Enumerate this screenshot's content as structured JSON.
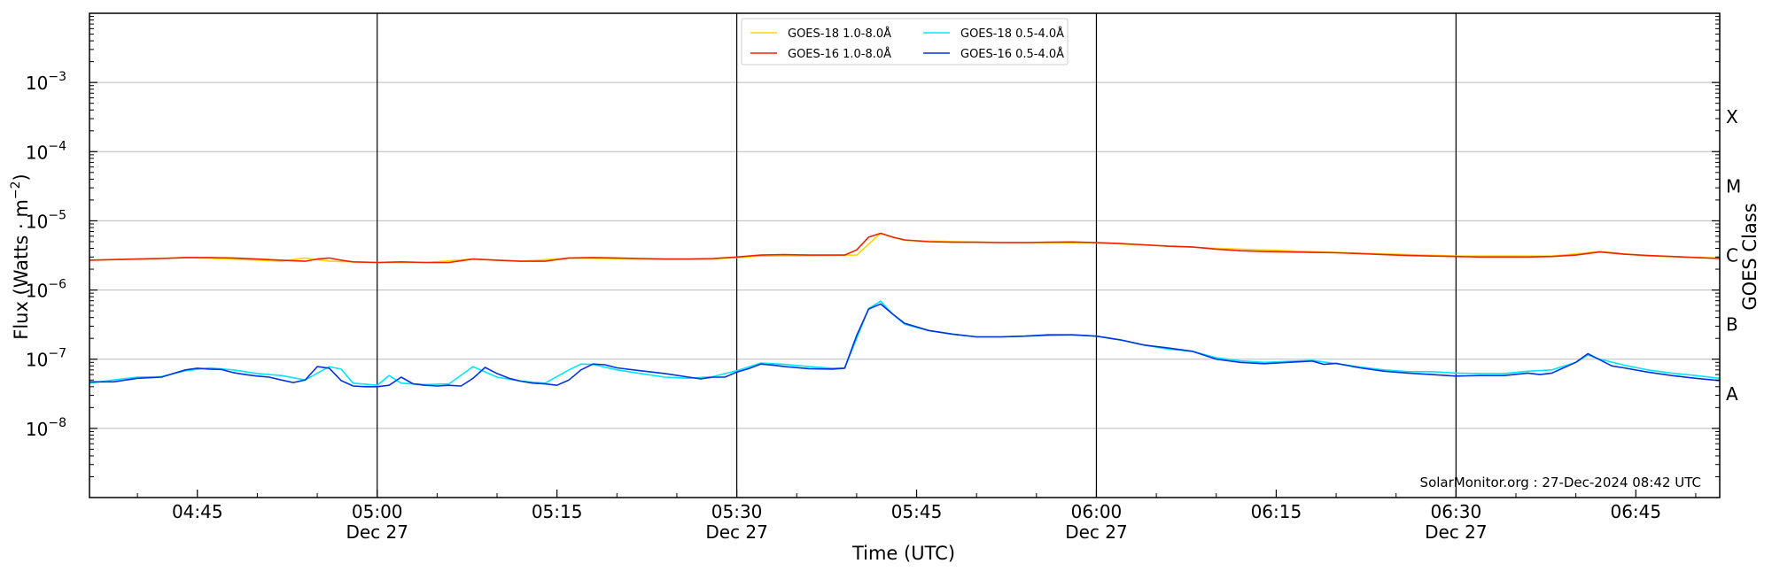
{
  "chart_data": {
    "type": "line",
    "title": "",
    "xlabel": "Time (UTC)",
    "ylabel": "Flux (Watts · m",
    "ylabel_superscript": "−2",
    "ylabel_close": ")",
    "y2label": "GOES Class",
    "yscale": "log",
    "ylim": [
      1e-09,
      0.01
    ],
    "xlim_minutes": [
      -24,
      112
    ],
    "grid": "horizontal",
    "legend_position": "top-center",
    "y_ticks": [
      {
        "value": 1e-08,
        "mantissa": "10",
        "exponent": "−8"
      },
      {
        "value": 1e-07,
        "mantissa": "10",
        "exponent": "−7"
      },
      {
        "value": 1e-06,
        "mantissa": "10",
        "exponent": "−6"
      },
      {
        "value": 1e-05,
        "mantissa": "10",
        "exponent": "−5"
      },
      {
        "value": 0.0001,
        "mantissa": "10",
        "exponent": "−4"
      },
      {
        "value": 0.001,
        "mantissa": "10",
        "exponent": "−3"
      }
    ],
    "x_ticks": [
      {
        "t": -15,
        "label": "04:45",
        "sublabel": ""
      },
      {
        "t": 0,
        "label": "05:00",
        "sublabel": "Dec 27"
      },
      {
        "t": 15,
        "label": "05:15",
        "sublabel": ""
      },
      {
        "t": 30,
        "label": "05:30",
        "sublabel": "Dec 27"
      },
      {
        "t": 45,
        "label": "05:45",
        "sublabel": ""
      },
      {
        "t": 60,
        "label": "06:00",
        "sublabel": "Dec 27"
      },
      {
        "t": 75,
        "label": "06:15",
        "sublabel": ""
      },
      {
        "t": 90,
        "label": "06:30",
        "sublabel": "Dec 27"
      },
      {
        "t": 105,
        "label": "06:45",
        "sublabel": ""
      }
    ],
    "vertical_lines": [
      0,
      30,
      60,
      90
    ],
    "class_labels": [
      {
        "label": "A",
        "value": 3.16e-08
      },
      {
        "label": "B",
        "value": 3.16e-07
      },
      {
        "label": "C",
        "value": 3.16e-06
      },
      {
        "label": "M",
        "value": 3.16e-05
      },
      {
        "label": "X",
        "value": 0.000316
      }
    ],
    "series": [
      {
        "name": "GOES-18 1.0-8.0Å",
        "color": "#ffd700",
        "points": [
          [
            -24,
            2.7e-06
          ],
          [
            -20,
            2.8e-06
          ],
          [
            -16,
            2.95e-06
          ],
          [
            -12,
            2.8e-06
          ],
          [
            -8,
            2.6e-06
          ],
          [
            -6,
            2.9e-06
          ],
          [
            -4,
            2.6e-06
          ],
          [
            0,
            2.5e-06
          ],
          [
            4,
            2.5e-06
          ],
          [
            8,
            2.8e-06
          ],
          [
            12,
            2.6e-06
          ],
          [
            16,
            2.9e-06
          ],
          [
            22,
            2.8e-06
          ],
          [
            28,
            2.8e-06
          ],
          [
            32,
            3.1e-06
          ],
          [
            40,
            3.2e-06
          ],
          [
            42,
            6.6e-06
          ],
          [
            44,
            5.2e-06
          ],
          [
            50,
            4.9e-06
          ],
          [
            60,
            4.8e-06
          ],
          [
            70,
            4e-06
          ],
          [
            80,
            3.5e-06
          ],
          [
            90,
            3.1e-06
          ],
          [
            98,
            3.1e-06
          ],
          [
            102,
            3.6e-06
          ],
          [
            106,
            3.1e-06
          ],
          [
            112,
            2.9e-06
          ]
        ]
      },
      {
        "name": "GOES-16 1.0-8.0Å",
        "color": "#ee2200",
        "points": [
          [
            -24,
            2.7e-06
          ],
          [
            -22,
            2.75e-06
          ],
          [
            -20,
            2.8e-06
          ],
          [
            -18,
            2.85e-06
          ],
          [
            -16,
            2.95e-06
          ],
          [
            -14,
            2.95e-06
          ],
          [
            -12,
            2.9e-06
          ],
          [
            -10,
            2.8e-06
          ],
          [
            -8,
            2.7e-06
          ],
          [
            -6,
            2.6e-06
          ],
          [
            -5,
            2.8e-06
          ],
          [
            -4,
            2.9e-06
          ],
          [
            -3,
            2.7e-06
          ],
          [
            -2,
            2.55e-06
          ],
          [
            0,
            2.5e-06
          ],
          [
            2,
            2.55e-06
          ],
          [
            4,
            2.5e-06
          ],
          [
            6,
            2.5e-06
          ],
          [
            8,
            2.8e-06
          ],
          [
            10,
            2.7e-06
          ],
          [
            12,
            2.6e-06
          ],
          [
            14,
            2.6e-06
          ],
          [
            16,
            2.9e-06
          ],
          [
            18,
            2.95e-06
          ],
          [
            20,
            2.9e-06
          ],
          [
            22,
            2.85e-06
          ],
          [
            24,
            2.8e-06
          ],
          [
            26,
            2.8e-06
          ],
          [
            28,
            2.85e-06
          ],
          [
            30,
            3e-06
          ],
          [
            32,
            3.2e-06
          ],
          [
            34,
            3.25e-06
          ],
          [
            36,
            3.2e-06
          ],
          [
            38,
            3.2e-06
          ],
          [
            39,
            3.2e-06
          ],
          [
            40,
            3.8e-06
          ],
          [
            41,
            5.8e-06
          ],
          [
            42,
            6.6e-06
          ],
          [
            43,
            5.8e-06
          ],
          [
            44,
            5.3e-06
          ],
          [
            46,
            5e-06
          ],
          [
            48,
            4.9e-06
          ],
          [
            50,
            4.9e-06
          ],
          [
            52,
            4.85e-06
          ],
          [
            54,
            4.85e-06
          ],
          [
            56,
            4.9e-06
          ],
          [
            58,
            4.95e-06
          ],
          [
            60,
            4.85e-06
          ],
          [
            62,
            4.7e-06
          ],
          [
            64,
            4.5e-06
          ],
          [
            66,
            4.3e-06
          ],
          [
            68,
            4.2e-06
          ],
          [
            70,
            3.9e-06
          ],
          [
            72,
            3.7e-06
          ],
          [
            74,
            3.6e-06
          ],
          [
            76,
            3.55e-06
          ],
          [
            78,
            3.5e-06
          ],
          [
            80,
            3.45e-06
          ],
          [
            82,
            3.35e-06
          ],
          [
            84,
            3.25e-06
          ],
          [
            86,
            3.15e-06
          ],
          [
            88,
            3.1e-06
          ],
          [
            90,
            3.05e-06
          ],
          [
            92,
            3e-06
          ],
          [
            94,
            3e-06
          ],
          [
            96,
            3e-06
          ],
          [
            98,
            3.05e-06
          ],
          [
            100,
            3.2e-06
          ],
          [
            102,
            3.55e-06
          ],
          [
            104,
            3.3e-06
          ],
          [
            106,
            3.15e-06
          ],
          [
            108,
            3.05e-06
          ],
          [
            110,
            2.95e-06
          ],
          [
            112,
            2.85e-06
          ]
        ]
      },
      {
        "name": "GOES-18 0.5-4.0Å",
        "color": "#00e5ff",
        "points": [
          [
            -24,
            4.5e-08
          ],
          [
            -22,
            5e-08
          ],
          [
            -20,
            5.5e-08
          ],
          [
            -18,
            5.6e-08
          ],
          [
            -16,
            6.8e-08
          ],
          [
            -14,
            7.5e-08
          ],
          [
            -12,
            7e-08
          ],
          [
            -10,
            6.2e-08
          ],
          [
            -8,
            5.8e-08
          ],
          [
            -6,
            5e-08
          ],
          [
            -4,
            7.8e-08
          ],
          [
            -3,
            7.2e-08
          ],
          [
            -2,
            4.5e-08
          ],
          [
            0,
            4.2e-08
          ],
          [
            1,
            5.8e-08
          ],
          [
            2,
            4.5e-08
          ],
          [
            4,
            4.3e-08
          ],
          [
            6,
            4.4e-08
          ],
          [
            8,
            7.8e-08
          ],
          [
            10,
            5.5e-08
          ],
          [
            12,
            4.8e-08
          ],
          [
            14,
            4.5e-08
          ],
          [
            16,
            7e-08
          ],
          [
            17,
            8.5e-08
          ],
          [
            18,
            8.4e-08
          ],
          [
            20,
            7e-08
          ],
          [
            22,
            6.2e-08
          ],
          [
            24,
            5.5e-08
          ],
          [
            26,
            5.3e-08
          ],
          [
            28,
            5.6e-08
          ],
          [
            30,
            6.8e-08
          ],
          [
            32,
            8.8e-08
          ],
          [
            34,
            8.4e-08
          ],
          [
            36,
            7.8e-08
          ],
          [
            38,
            7.4e-08
          ],
          [
            39,
            7.5e-08
          ],
          [
            40,
            2e-07
          ],
          [
            41,
            5.4e-07
          ],
          [
            42,
            6.9e-07
          ],
          [
            43,
            4.5e-07
          ],
          [
            44,
            3.2e-07
          ],
          [
            46,
            2.6e-07
          ],
          [
            48,
            2.3e-07
          ],
          [
            50,
            2.1e-07
          ],
          [
            52,
            2.1e-07
          ],
          [
            54,
            2.15e-07
          ],
          [
            56,
            2.2e-07
          ],
          [
            58,
            2.25e-07
          ],
          [
            60,
            2.15e-07
          ],
          [
            62,
            1.9e-07
          ],
          [
            64,
            1.6e-07
          ],
          [
            66,
            1.4e-07
          ],
          [
            68,
            1.3e-07
          ],
          [
            70,
            1.05e-07
          ],
          [
            72,
            9.5e-08
          ],
          [
            74,
            9e-08
          ],
          [
            76,
            9.3e-08
          ],
          [
            78,
            9.6e-08
          ],
          [
            80,
            8.6e-08
          ],
          [
            82,
            7.7e-08
          ],
          [
            84,
            7e-08
          ],
          [
            86,
            6.6e-08
          ],
          [
            88,
            6.6e-08
          ],
          [
            90,
            6.3e-08
          ],
          [
            92,
            6.2e-08
          ],
          [
            94,
            6.2e-08
          ],
          [
            96,
            6.7e-08
          ],
          [
            98,
            7e-08
          ],
          [
            100,
            9e-08
          ],
          [
            101,
            1.15e-07
          ],
          [
            102,
            1e-07
          ],
          [
            104,
            8.2e-08
          ],
          [
            106,
            7e-08
          ],
          [
            108,
            6.3e-08
          ],
          [
            110,
            5.8e-08
          ],
          [
            112,
            5.3e-08
          ]
        ]
      },
      {
        "name": "GOES-16 0.5-4.0Å",
        "color": "#0033dd",
        "points": [
          [
            -24,
            4.7e-08
          ],
          [
            -22,
            4.7e-08
          ],
          [
            -20,
            5.3e-08
          ],
          [
            -18,
            5.5e-08
          ],
          [
            -17,
            6.2e-08
          ],
          [
            -16,
            7e-08
          ],
          [
            -15,
            7.4e-08
          ],
          [
            -14,
            7.2e-08
          ],
          [
            -13,
            7.1e-08
          ],
          [
            -12,
            6.4e-08
          ],
          [
            -11,
            6e-08
          ],
          [
            -10,
            5.7e-08
          ],
          [
            -9,
            5.5e-08
          ],
          [
            -8,
            5e-08
          ],
          [
            -7,
            4.6e-08
          ],
          [
            -6,
            5e-08
          ],
          [
            -5,
            7.8e-08
          ],
          [
            -4,
            7.4e-08
          ],
          [
            -3,
            4.9e-08
          ],
          [
            -2,
            4.1e-08
          ],
          [
            -1,
            4e-08
          ],
          [
            0,
            4e-08
          ],
          [
            1,
            4.2e-08
          ],
          [
            2,
            5.5e-08
          ],
          [
            3,
            4.4e-08
          ],
          [
            4,
            4.2e-08
          ],
          [
            5,
            4.1e-08
          ],
          [
            6,
            4.2e-08
          ],
          [
            7,
            4.1e-08
          ],
          [
            8,
            5.3e-08
          ],
          [
            9,
            7.6e-08
          ],
          [
            10,
            6.2e-08
          ],
          [
            11,
            5.3e-08
          ],
          [
            12,
            4.8e-08
          ],
          [
            13,
            4.5e-08
          ],
          [
            14,
            4.4e-08
          ],
          [
            15,
            4.2e-08
          ],
          [
            16,
            5e-08
          ],
          [
            17,
            7e-08
          ],
          [
            18,
            8.5e-08
          ],
          [
            19,
            8.3e-08
          ],
          [
            20,
            7.5e-08
          ],
          [
            22,
            6.8e-08
          ],
          [
            24,
            6.2e-08
          ],
          [
            26,
            5.5e-08
          ],
          [
            27,
            5.2e-08
          ],
          [
            28,
            5.5e-08
          ],
          [
            29,
            5.5e-08
          ],
          [
            30,
            6.5e-08
          ],
          [
            31,
            7.3e-08
          ],
          [
            32,
            8.5e-08
          ],
          [
            33,
            8.2e-08
          ],
          [
            34,
            7.8e-08
          ],
          [
            36,
            7.3e-08
          ],
          [
            38,
            7.2e-08
          ],
          [
            39,
            7.4e-08
          ],
          [
            40,
            2.2e-07
          ],
          [
            41,
            5.3e-07
          ],
          [
            42,
            6.3e-07
          ],
          [
            43,
            4.5e-07
          ],
          [
            44,
            3.3e-07
          ],
          [
            46,
            2.6e-07
          ],
          [
            48,
            2.3e-07
          ],
          [
            50,
            2.1e-07
          ],
          [
            52,
            2.1e-07
          ],
          [
            54,
            2.15e-07
          ],
          [
            56,
            2.25e-07
          ],
          [
            58,
            2.25e-07
          ],
          [
            60,
            2.15e-07
          ],
          [
            62,
            1.9e-07
          ],
          [
            64,
            1.6e-07
          ],
          [
            66,
            1.45e-07
          ],
          [
            68,
            1.3e-07
          ],
          [
            70,
            1e-07
          ],
          [
            72,
            9e-08
          ],
          [
            74,
            8.6e-08
          ],
          [
            76,
            9e-08
          ],
          [
            78,
            9.4e-08
          ],
          [
            79,
            8.4e-08
          ],
          [
            80,
            8.7e-08
          ],
          [
            82,
            7.5e-08
          ],
          [
            84,
            6.7e-08
          ],
          [
            86,
            6.3e-08
          ],
          [
            88,
            6e-08
          ],
          [
            90,
            5.7e-08
          ],
          [
            92,
            5.8e-08
          ],
          [
            94,
            5.8e-08
          ],
          [
            96,
            6.3e-08
          ],
          [
            97,
            6e-08
          ],
          [
            98,
            6.3e-08
          ],
          [
            100,
            9e-08
          ],
          [
            101,
            1.2e-07
          ],
          [
            102,
            9.8e-08
          ],
          [
            103,
            8e-08
          ],
          [
            104,
            7.5e-08
          ],
          [
            106,
            6.5e-08
          ],
          [
            108,
            5.8e-08
          ],
          [
            110,
            5.3e-08
          ],
          [
            112,
            4.9e-08
          ]
        ]
      }
    ],
    "watermark": "SolarMonitor.org : 27-Dec-2024 08:42 UTC"
  }
}
